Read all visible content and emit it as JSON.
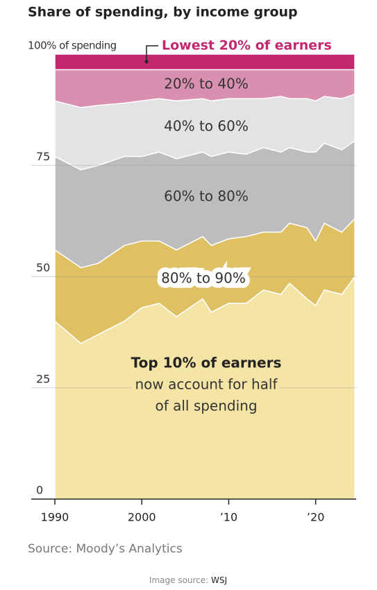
{
  "chart_data": {
    "type": "stacked-area",
    "title": "Share of spending, by income group",
    "x": [
      1990,
      1993,
      1995,
      1998,
      2000,
      2002,
      2004,
      2007,
      2008,
      2010,
      2012,
      2014,
      2016,
      2017,
      2019,
      2020,
      2021,
      2023,
      2024.5
    ],
    "series": [
      {
        "name": "Top 10% of earners",
        "color": "#f4e4a6",
        "values": [
          40,
          35,
          37,
          40,
          43,
          44,
          41,
          45,
          42,
          44,
          44,
          47,
          46,
          48.5,
          45,
          43.5,
          47,
          46,
          50
        ]
      },
      {
        "name": "80% to 90%",
        "color": "#dfc164",
        "values": [
          16,
          17,
          16,
          17,
          15,
          14,
          15,
          14,
          15,
          14.5,
          15,
          13,
          14,
          13.5,
          16,
          14.5,
          15,
          14,
          13
        ]
      },
      {
        "name": "60% to 80%",
        "color": "#bdbdbd",
        "values": [
          21,
          22,
          22,
          20,
          19,
          20,
          20.5,
          19,
          20,
          19.5,
          18.5,
          19,
          18,
          17,
          17,
          20,
          18,
          18.5,
          17.5
        ]
      },
      {
        "name": "40% to 60%",
        "color": "#e3e3e5",
        "values": [
          12.5,
          14,
          13.5,
          12,
          12.5,
          12,
          13,
          12,
          12.5,
          12,
          12.5,
          11,
          12.5,
          11,
          12,
          11.5,
          10.5,
          11.5,
          10.5
        ]
      },
      {
        "name": "20% to 40%",
        "color": "#d98fb0",
        "values": [
          7,
          8.5,
          8,
          7.5,
          7,
          6.5,
          7,
          6.5,
          7,
          6.5,
          6.5,
          6.5,
          6,
          6.5,
          6.5,
          7,
          6,
          6.5,
          5.5
        ]
      },
      {
        "name": "Lowest 20% of earners",
        "color": "#c2286f",
        "values": [
          3.5,
          3.5,
          3.5,
          3.5,
          3.5,
          3.5,
          3.5,
          3.5,
          3.5,
          3.5,
          3.5,
          3.5,
          3.5,
          3.5,
          3.5,
          3.5,
          3.5,
          3.5,
          3.5
        ]
      }
    ],
    "annotation": [
      "now account for half",
      "of all spending"
    ],
    "xlim": [
      1990,
      2024.5
    ],
    "xticks": [
      1990,
      2000,
      {
        "value": 2010,
        "label": "’10"
      },
      {
        "value": 2020,
        "label": "’20"
      }
    ],
    "ylim": [
      0,
      100
    ],
    "yticks": [
      0,
      25,
      50,
      75,
      {
        "value": 100,
        "label": "100% of spending"
      }
    ],
    "grid": true,
    "source": "Source: Moody’s Analytics",
    "image_source": {
      "prefix": "Image source:",
      "name": "WSJ"
    }
  }
}
